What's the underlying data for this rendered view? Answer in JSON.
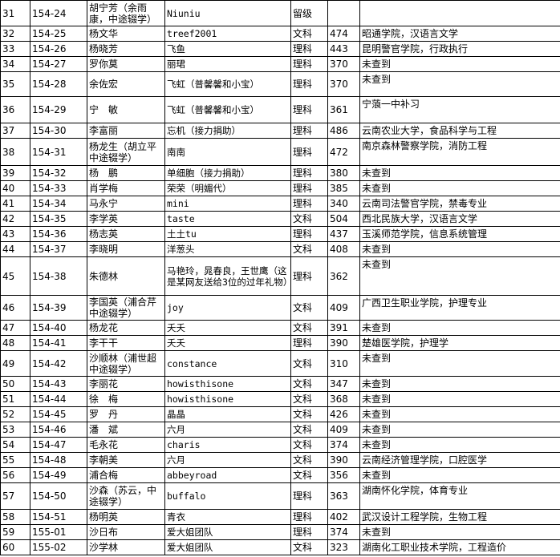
{
  "table": {
    "rows": [
      [
        31,
        "154-24",
        "胡宁芳（余雨康，中途辍学）",
        "Niuniu",
        "留级",
        null,
        null
      ],
      [
        32,
        "154-25",
        "杨文华",
        "treef2001",
        "文科",
        474,
        "昭通学院，汉语言文学"
      ],
      [
        33,
        "154-26",
        "杨晓芳",
        "飞鱼",
        "理科",
        443,
        "昆明警官学院，行政执行"
      ],
      [
        34,
        "154-27",
        "罗你莫",
        "丽珺",
        "理科",
        370,
        "未查到"
      ],
      [
        35,
        "154-28",
        "余佐宏",
        "飞虹（普馨馨和小宝）",
        "理科",
        370,
        "未查到"
      ],
      [
        36,
        "154-29",
        "宁　敏",
        "飞虹（普馨馨和小宝）",
        "理科",
        361,
        "宁蒗一中补习"
      ],
      [
        37,
        "154-30",
        "李富丽",
        "忘机（接力捐助）",
        "理科",
        486,
        "云南农业大学，食品科学与工程"
      ],
      [
        38,
        "154-31",
        "杨龙生（胡立平中途辍学）",
        "南南",
        "理科",
        472,
        "南京森林警察学院，消防工程"
      ],
      [
        39,
        "154-32",
        "杨　鹏",
        "单细胞（接力捐助）",
        "理科",
        380,
        "未查到"
      ],
      [
        40,
        "154-33",
        "肖学梅",
        "荣荣（明媚代）",
        "理科",
        385,
        "未查到"
      ],
      [
        41,
        "154-34",
        "马永宁",
        "mini",
        "理科",
        340,
        "云南司法警官学院，禁毒专业"
      ],
      [
        42,
        "154-35",
        "李学英",
        "taste",
        "文科",
        504,
        "西北民族大学，汉语言文学"
      ],
      [
        43,
        "154-36",
        "杨志英",
        "土土tu",
        "理科",
        437,
        "玉溪师范学院，信息系统管理"
      ],
      [
        44,
        "154-37",
        "李晓明",
        "洋葱头",
        "文科",
        408,
        "未查到"
      ],
      [
        45,
        "154-38",
        "朱德林",
        "马艳玲，晁春良，王世鹰（这是某网友送给3位的过年礼物）",
        "理科",
        362,
        "未查到"
      ],
      [
        46,
        "154-39",
        "李国英（浦合芹中途辍学）",
        "joy",
        "文科",
        409,
        "广西卫生职业学院，护理专业"
      ],
      [
        47,
        "154-40",
        "杨龙花",
        "夭夭",
        "文科",
        391,
        "未查到"
      ],
      [
        48,
        "154-41",
        "李干干",
        "夭夭",
        "理科",
        390,
        "楚雄医学院，护理学"
      ],
      [
        49,
        "154-42",
        "沙顺林（浦世超中途辍学）",
        "constance",
        "文科",
        310,
        "未查到"
      ],
      [
        50,
        "154-43",
        "李丽花",
        "howisthisone",
        "文科",
        347,
        "未查到"
      ],
      [
        51,
        "154-44",
        "徐　梅",
        "howisthisone",
        "文科",
        368,
        "未查到"
      ],
      [
        52,
        "154-45",
        "罗　丹",
        "晶晶",
        "文科",
        426,
        "未查到"
      ],
      [
        53,
        "154-46",
        "潘　斌",
        "六月",
        "文科",
        409,
        "未查到"
      ],
      [
        54,
        "154-47",
        "毛永花",
        "charis",
        "文科",
        374,
        "未查到"
      ],
      [
        55,
        "154-48",
        "李朝美",
        "六月",
        "文科",
        390,
        "云南经济管理学院，口腔医学"
      ],
      [
        56,
        "154-49",
        "浦合梅",
        "abbeyroad",
        "文科",
        356,
        "未查到"
      ],
      [
        57,
        "154-50",
        "沙森（苏云，中途辍学）",
        "buffalo",
        "理科",
        363,
        "湖南怀化学院，体育专业"
      ],
      [
        58,
        "154-51",
        "杨明英",
        "青衣",
        "理科",
        402,
        "武汉设计工程学院，生物工程"
      ],
      [
        59,
        "155-01",
        "沙日布",
        "爱大姐团队",
        "理科",
        374,
        "未查到"
      ],
      [
        60,
        "155-02",
        "沙学林",
        "爱大姐团队",
        "文科",
        323,
        "湖南化工职业技术学院，工程造价"
      ]
    ]
  }
}
